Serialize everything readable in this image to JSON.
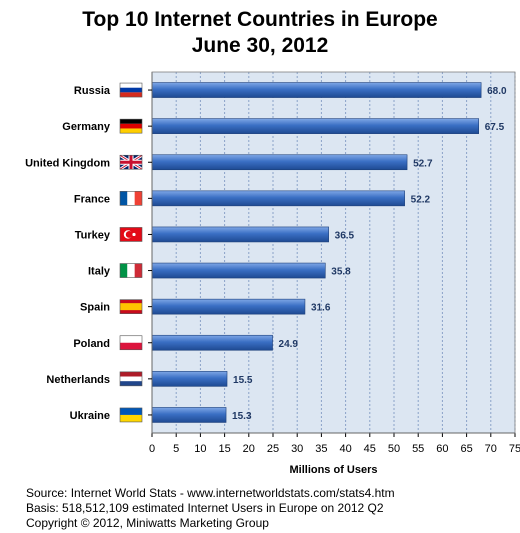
{
  "footer": {
    "source": "Source: Internet World Stats  -  www.internetworldstats.com/stats4.htm",
    "basis": "Basis: 518,512,109 estimated Internet  Users in Europe on 2012 Q2",
    "copyright": "Copyright © 2012, Miniwatts Marketing Group"
  },
  "flags": [
    {
      "country": "Russia",
      "type": "h3",
      "colors": [
        "#ffffff",
        "#0039a6",
        "#d52b1e"
      ]
    },
    {
      "country": "Germany",
      "type": "h3",
      "colors": [
        "#000000",
        "#dd0000",
        "#ffce00"
      ]
    },
    {
      "country": "United Kingdom",
      "type": "uk",
      "colors": [
        "#012169",
        "#ffffff",
        "#c8102e"
      ]
    },
    {
      "country": "France",
      "type": "v3",
      "colors": [
        "#0055a4",
        "#ffffff",
        "#ef4135"
      ]
    },
    {
      "country": "Turkey",
      "type": "crescent",
      "colors": [
        "#e30a17",
        "#ffffff"
      ]
    },
    {
      "country": "Italy",
      "type": "v3",
      "colors": [
        "#009246",
        "#ffffff",
        "#ce2b37"
      ]
    },
    {
      "country": "Spain",
      "type": "spain",
      "colors": [
        "#c60b1e",
        "#ffc400"
      ]
    },
    {
      "country": "Poland",
      "type": "h2",
      "colors": [
        "#ffffff",
        "#dc143c"
      ]
    },
    {
      "country": "Netherlands",
      "type": "h3",
      "colors": [
        "#ae1c28",
        "#ffffff",
        "#21468b"
      ]
    },
    {
      "country": "Ukraine",
      "type": "h2",
      "colors": [
        "#0057b7",
        "#ffd700"
      ]
    }
  ],
  "chart_data": {
    "type": "bar",
    "orientation": "horizontal",
    "title": "Top 10 Internet Countries in Europe",
    "subtitle": "June 30, 2012",
    "xlabel": "Millions of Users",
    "ylabel": "",
    "categories": [
      "Russia",
      "Germany",
      "United Kingdom",
      "France",
      "Turkey",
      "Italy",
      "Spain",
      "Poland",
      "Netherlands",
      "Ukraine"
    ],
    "values": [
      68.0,
      67.5,
      52.7,
      52.2,
      36.5,
      35.8,
      31.6,
      24.9,
      15.5,
      15.3
    ],
    "value_labels": [
      "68.0",
      "67.5",
      "52.7",
      "52.2",
      "36.5",
      "35.8",
      "31.6",
      "24.9",
      "15.5",
      "15.3"
    ],
    "xlim": [
      0,
      75
    ],
    "xticks": [
      0,
      5,
      10,
      15,
      20,
      25,
      30,
      35,
      40,
      45,
      50,
      55,
      60,
      65,
      70,
      75
    ],
    "grid": true,
    "bar_color": "#3a6fc4",
    "plot_background": "#dce6f2",
    "legend": "none"
  }
}
